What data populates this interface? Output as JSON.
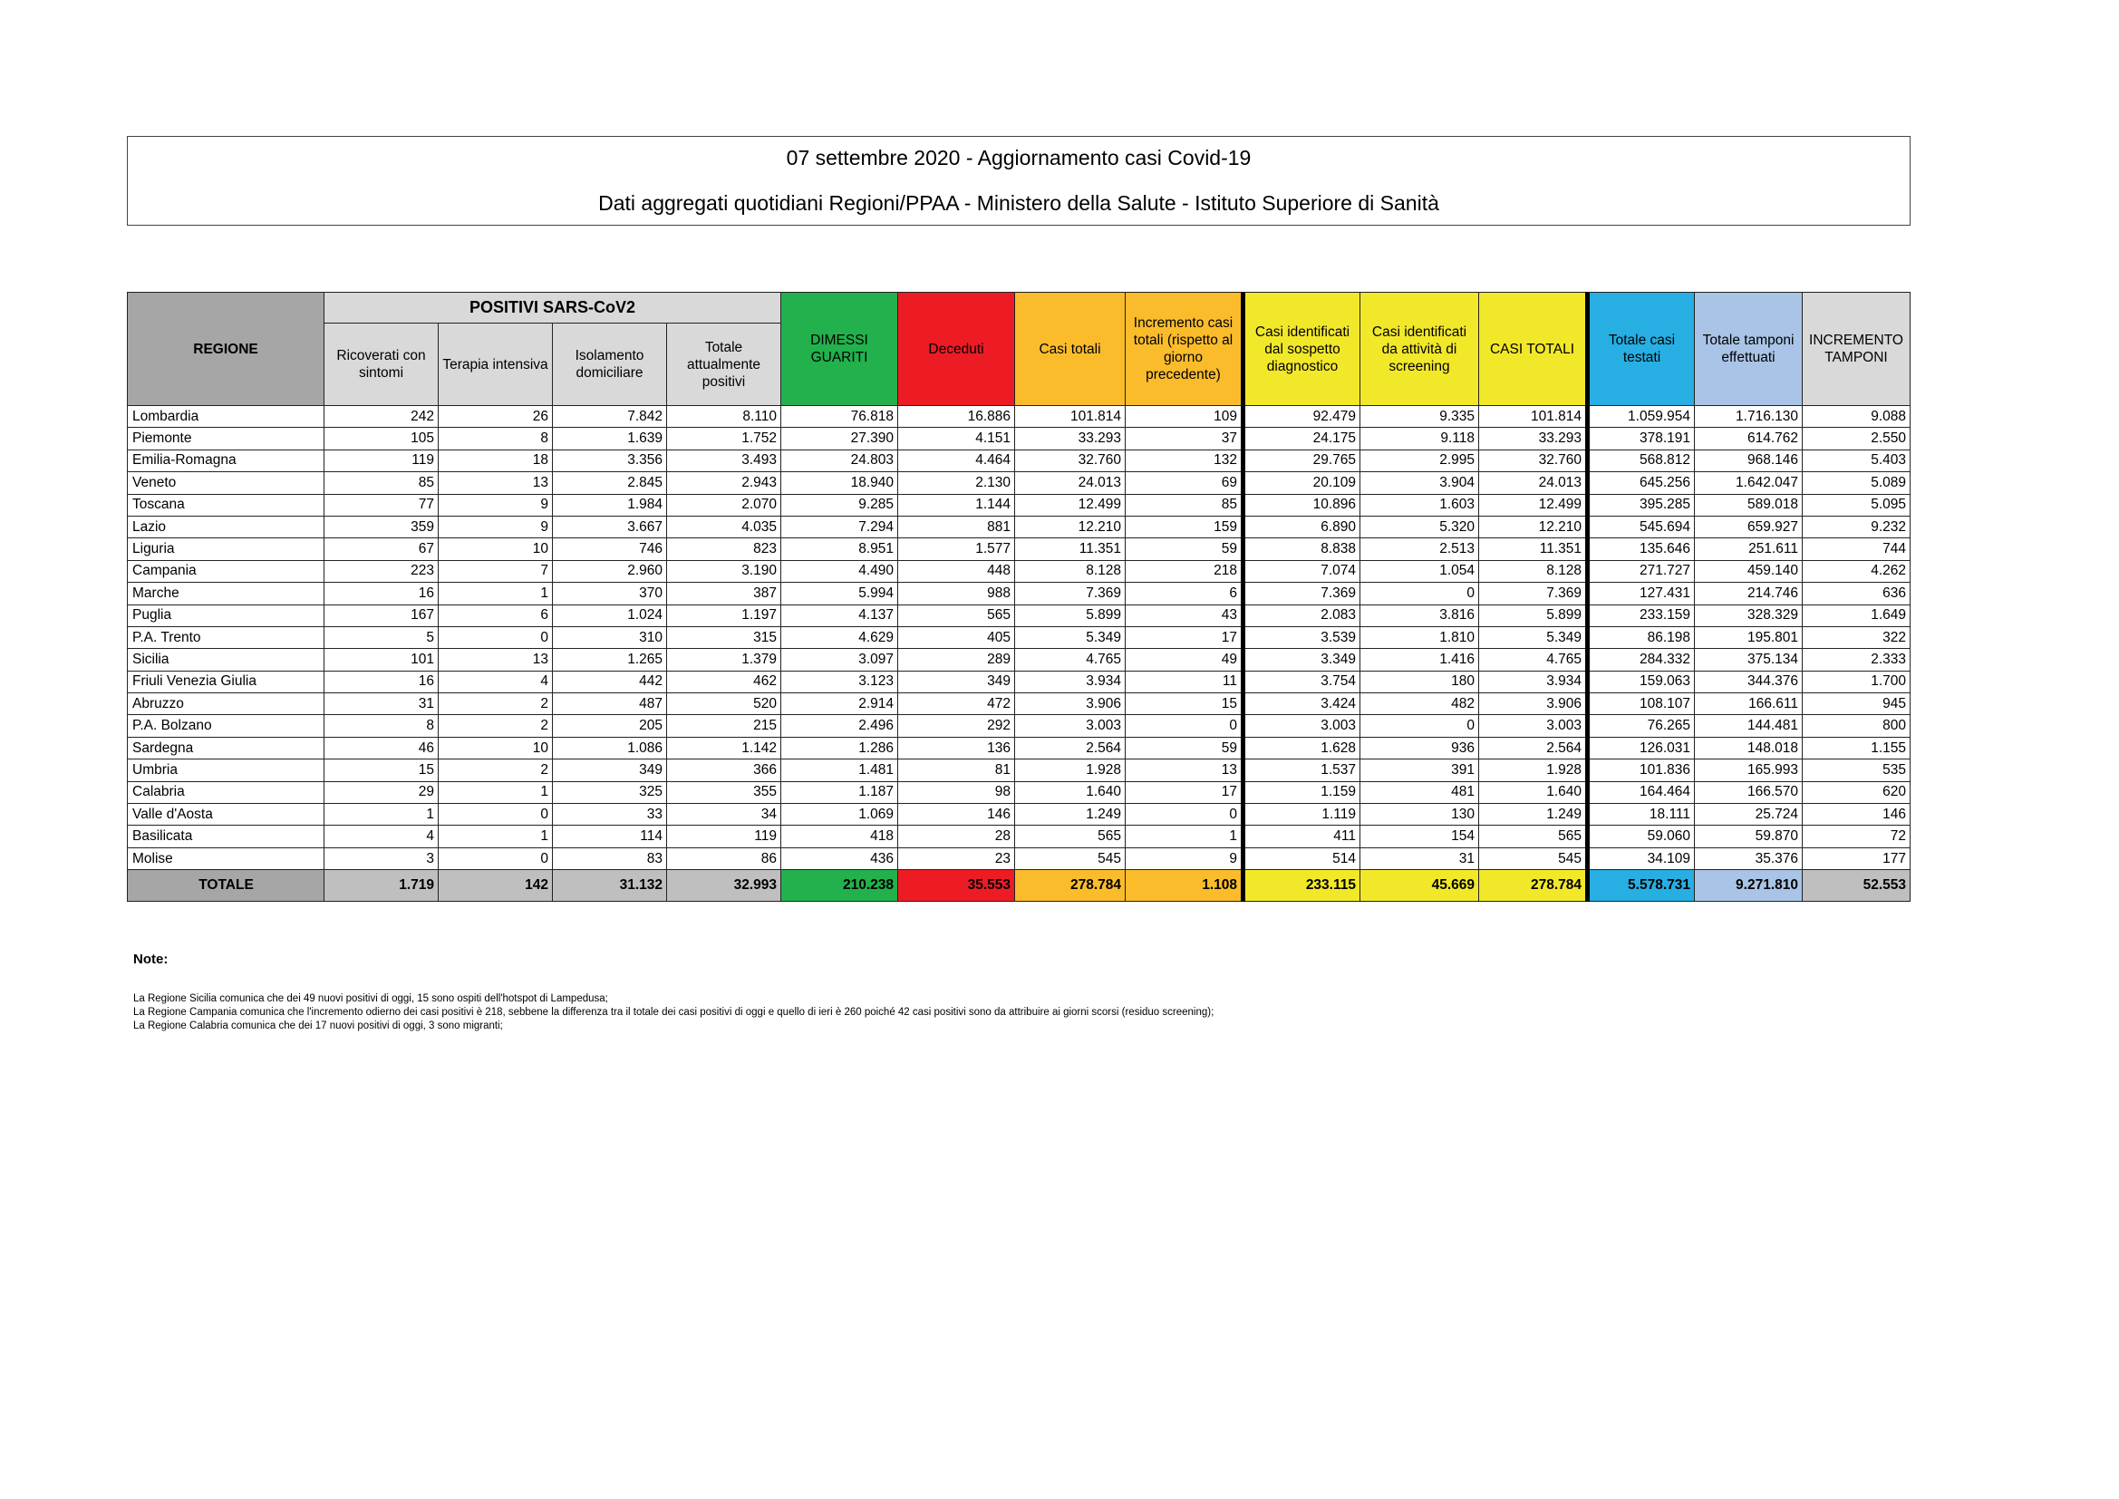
{
  "title": "07 settembre 2020 - Aggiornamento casi Covid-19",
  "subtitle": "Dati aggregati quotidiani Regioni/PPAA - Ministero della Salute - Istituto Superiore di Sanità",
  "table": {
    "group_header": "POSITIVI SARS-CoV2",
    "columns": [
      {
        "label": "REGIONE",
        "bg": "#a6a6a6"
      },
      {
        "label": "Ricoverati con sintomi",
        "bg": "#d9d9d9"
      },
      {
        "label": "Terapia intensiva",
        "bg": "#d9d9d9"
      },
      {
        "label": "Isolamento domiciliare",
        "bg": "#d9d9d9"
      },
      {
        "label": "Totale attualmente positivi",
        "bg": "#d9d9d9"
      },
      {
        "label": "DIMESSI GUARITI",
        "bg": "#22b14c"
      },
      {
        "label": "Deceduti",
        "bg": "#ed1c24"
      },
      {
        "label": "Casi totali",
        "bg": "#fbbc2c"
      },
      {
        "label": "Incremento casi totali (rispetto al giorno precedente)",
        "bg": "#fbbc2c"
      },
      {
        "label": "Casi identificati dal sospetto diagnostico",
        "bg": "#f2e82a"
      },
      {
        "label": "Casi identificati da attività di screening",
        "bg": "#f2e82a"
      },
      {
        "label": "CASI TOTALI",
        "bg": "#f2e82a"
      },
      {
        "label": "Totale casi testati",
        "bg": "#27aee2"
      },
      {
        "label": "Totale tamponi effettuati",
        "bg": "#a9c4e6"
      },
      {
        "label": "INCREMENTO TAMPONI",
        "bg": "#d9d9d9"
      }
    ],
    "rows": [
      [
        "Lombardia",
        "242",
        "26",
        "7.842",
        "8.110",
        "76.818",
        "16.886",
        "101.814",
        "109",
        "92.479",
        "9.335",
        "101.814",
        "1.059.954",
        "1.716.130",
        "9.088"
      ],
      [
        "Piemonte",
        "105",
        "8",
        "1.639",
        "1.752",
        "27.390",
        "4.151",
        "33.293",
        "37",
        "24.175",
        "9.118",
        "33.293",
        "378.191",
        "614.762",
        "2.550"
      ],
      [
        "Emilia-Romagna",
        "119",
        "18",
        "3.356",
        "3.493",
        "24.803",
        "4.464",
        "32.760",
        "132",
        "29.765",
        "2.995",
        "32.760",
        "568.812",
        "968.146",
        "5.403"
      ],
      [
        "Veneto",
        "85",
        "13",
        "2.845",
        "2.943",
        "18.940",
        "2.130",
        "24.013",
        "69",
        "20.109",
        "3.904",
        "24.013",
        "645.256",
        "1.642.047",
        "5.089"
      ],
      [
        "Toscana",
        "77",
        "9",
        "1.984",
        "2.070",
        "9.285",
        "1.144",
        "12.499",
        "85",
        "10.896",
        "1.603",
        "12.499",
        "395.285",
        "589.018",
        "5.095"
      ],
      [
        "Lazio",
        "359",
        "9",
        "3.667",
        "4.035",
        "7.294",
        "881",
        "12.210",
        "159",
        "6.890",
        "5.320",
        "12.210",
        "545.694",
        "659.927",
        "9.232"
      ],
      [
        "Liguria",
        "67",
        "10",
        "746",
        "823",
        "8.951",
        "1.577",
        "11.351",
        "59",
        "8.838",
        "2.513",
        "11.351",
        "135.646",
        "251.611",
        "744"
      ],
      [
        "Campania",
        "223",
        "7",
        "2.960",
        "3.190",
        "4.490",
        "448",
        "8.128",
        "218",
        "7.074",
        "1.054",
        "8.128",
        "271.727",
        "459.140",
        "4.262"
      ],
      [
        "Marche",
        "16",
        "1",
        "370",
        "387",
        "5.994",
        "988",
        "7.369",
        "6",
        "7.369",
        "0",
        "7.369",
        "127.431",
        "214.746",
        "636"
      ],
      [
        "Puglia",
        "167",
        "6",
        "1.024",
        "1.197",
        "4.137",
        "565",
        "5.899",
        "43",
        "2.083",
        "3.816",
        "5.899",
        "233.159",
        "328.329",
        "1.649"
      ],
      [
        "P.A. Trento",
        "5",
        "0",
        "310",
        "315",
        "4.629",
        "405",
        "5.349",
        "17",
        "3.539",
        "1.810",
        "5.349",
        "86.198",
        "195.801",
        "322"
      ],
      [
        "Sicilia",
        "101",
        "13",
        "1.265",
        "1.379",
        "3.097",
        "289",
        "4.765",
        "49",
        "3.349",
        "1.416",
        "4.765",
        "284.332",
        "375.134",
        "2.333"
      ],
      [
        "Friuli Venezia Giulia",
        "16",
        "4",
        "442",
        "462",
        "3.123",
        "349",
        "3.934",
        "11",
        "3.754",
        "180",
        "3.934",
        "159.063",
        "344.376",
        "1.700"
      ],
      [
        "Abruzzo",
        "31",
        "2",
        "487",
        "520",
        "2.914",
        "472",
        "3.906",
        "15",
        "3.424",
        "482",
        "3.906",
        "108.107",
        "166.611",
        "945"
      ],
      [
        "P.A. Bolzano",
        "8",
        "2",
        "205",
        "215",
        "2.496",
        "292",
        "3.003",
        "0",
        "3.003",
        "0",
        "3.003",
        "76.265",
        "144.481",
        "800"
      ],
      [
        "Sardegna",
        "46",
        "10",
        "1.086",
        "1.142",
        "1.286",
        "136",
        "2.564",
        "59",
        "1.628",
        "936",
        "2.564",
        "126.031",
        "148.018",
        "1.155"
      ],
      [
        "Umbria",
        "15",
        "2",
        "349",
        "366",
        "1.481",
        "81",
        "1.928",
        "13",
        "1.537",
        "391",
        "1.928",
        "101.836",
        "165.993",
        "535"
      ],
      [
        "Calabria",
        "29",
        "1",
        "325",
        "355",
        "1.187",
        "98",
        "1.640",
        "17",
        "1.159",
        "481",
        "1.640",
        "164.464",
        "166.570",
        "620"
      ],
      [
        "Valle d'Aosta",
        "1",
        "0",
        "33",
        "34",
        "1.069",
        "146",
        "1.249",
        "0",
        "1.119",
        "130",
        "1.249",
        "18.111",
        "25.724",
        "146"
      ],
      [
        "Basilicata",
        "4",
        "1",
        "114",
        "119",
        "418",
        "28",
        "565",
        "1",
        "411",
        "154",
        "565",
        "59.060",
        "59.870",
        "72"
      ],
      [
        "Molise",
        "3",
        "0",
        "83",
        "86",
        "436",
        "23",
        "545",
        "9",
        "514",
        "31",
        "545",
        "34.109",
        "35.376",
        "177"
      ]
    ],
    "total": [
      "TOTALE",
      "1.719",
      "142",
      "31.132",
      "32.993",
      "210.238",
      "35.553",
      "278.784",
      "1.108",
      "233.115",
      "45.669",
      "278.784",
      "5.578.731",
      "9.271.810",
      "52.553"
    ],
    "total_bg": [
      "#a6a6a6",
      "#bfbfbf",
      "#bfbfbf",
      "#bfbfbf",
      "#bfbfbf",
      "#22b14c",
      "#ed1c24",
      "#fbbc2c",
      "#fbbc2c",
      "#f2e82a",
      "#f2e82a",
      "#f2e82a",
      "#27aee2",
      "#a9c4e6",
      "#bfbfbf"
    ]
  },
  "notes": {
    "title": "Note:",
    "lines": [
      "La Regione Sicilia comunica che dei 49 nuovi positivi di oggi, 15 sono ospiti dell'hotspot di Lampedusa;",
      "La Regione Campania comunica che l'incremento odierno dei casi positivi è 218, sebbene la differenza tra il totale dei casi positivi di oggi e quello di ieri è 260 poiché 42 casi positivi sono da attribuire ai giorni scorsi (residuo screening);",
      "La Regione Calabria comunica che dei 17 nuovi positivi di oggi, 3 sono migranti;"
    ]
  }
}
